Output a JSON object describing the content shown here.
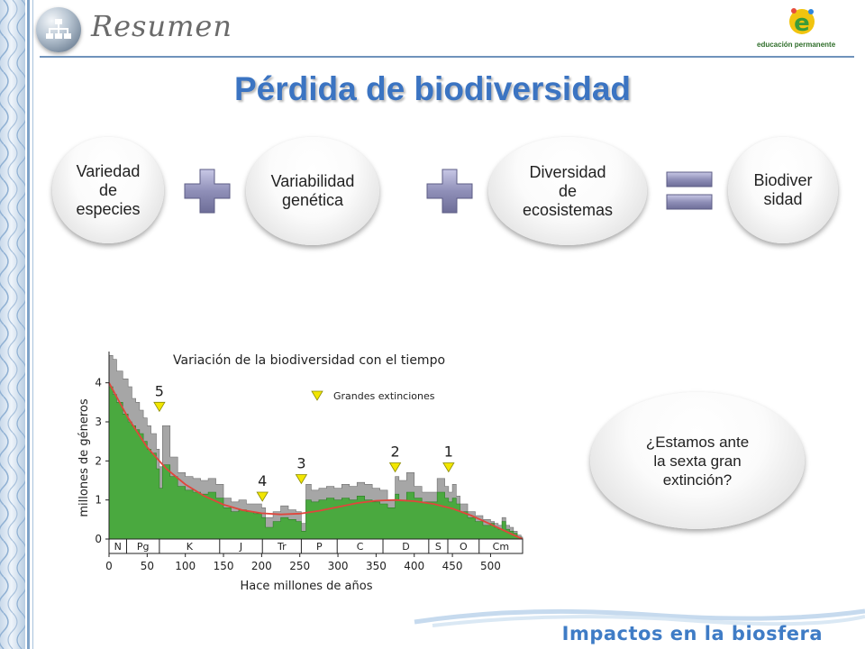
{
  "header": {
    "title": "Resumen",
    "brand_name": "educación permanente"
  },
  "slide": {
    "title": "Pérdida de biodiversidad"
  },
  "equation": {
    "terms": [
      "Variedad\nde\nespecies",
      "Variabilidad\ngenética",
      "Diversidad\nde\necosistemas"
    ],
    "result": "Biodiver\nsidad"
  },
  "question": "¿Estamos ante\nla sexta gran\nextinción?",
  "footer": {
    "title": "Impactos en la biosfera"
  },
  "colors": {
    "title_blue": "#3b74c2",
    "green": "#4aa93f",
    "gray": "#a6a6a6",
    "trend_red": "#e0463c",
    "marker_yellow": "#f2e600",
    "operator_purple": "#8f8fb8"
  },
  "chart_data": {
    "type": "area",
    "title": "Variación de la biodiversidad con el tiempo",
    "xlabel": "Hace millones de años",
    "ylabel": "millones de géneros",
    "xlim": [
      0,
      542
    ],
    "ylim": [
      0,
      4.8
    ],
    "x_ticks": [
      0,
      50,
      100,
      150,
      200,
      250,
      300,
      350,
      400,
      450,
      500
    ],
    "y_ticks": [
      0,
      1,
      2,
      3,
      4
    ],
    "legend": {
      "label": "Grandes extinciones",
      "position": "top-right"
    },
    "periods": [
      {
        "label": "N",
        "start": 0,
        "end": 23
      },
      {
        "label": "Pg",
        "start": 23,
        "end": 66
      },
      {
        "label": "K",
        "start": 66,
        "end": 145
      },
      {
        "label": "J",
        "start": 145,
        "end": 201
      },
      {
        "label": "Tr",
        "start": 201,
        "end": 252
      },
      {
        "label": "P",
        "start": 252,
        "end": 299
      },
      {
        "label": "C",
        "start": 299,
        "end": 359
      },
      {
        "label": "D",
        "start": 359,
        "end": 419
      },
      {
        "label": "S",
        "start": 419,
        "end": 444
      },
      {
        "label": "O",
        "start": 444,
        "end": 485
      },
      {
        "label": "Cm",
        "start": 485,
        "end": 542
      }
    ],
    "extinctions": [
      {
        "label": "5",
        "x": 66,
        "y": 3.5
      },
      {
        "label": "4",
        "x": 201,
        "y": 1.2
      },
      {
        "label": "3",
        "x": 252,
        "y": 1.65
      },
      {
        "label": "2",
        "x": 375,
        "y": 1.95
      },
      {
        "label": "1",
        "x": 445,
        "y": 1.95
      }
    ],
    "series": [
      {
        "name": "total",
        "x": [
          0,
          5,
          10,
          18,
          25,
          30,
          35,
          40,
          45,
          50,
          55,
          62,
          66,
          70,
          80,
          90,
          100,
          110,
          120,
          130,
          140,
          150,
          160,
          170,
          180,
          190,
          200,
          205,
          215,
          225,
          235,
          245,
          252,
          258,
          265,
          275,
          285,
          295,
          305,
          315,
          325,
          335,
          345,
          355,
          365,
          375,
          380,
          390,
          400,
          410,
          420,
          430,
          440,
          445,
          450,
          455,
          460,
          470,
          480,
          490,
          500,
          505,
          510,
          515,
          520,
          525,
          530,
          535,
          540,
          542
        ],
        "values": [
          4.7,
          4.6,
          4.3,
          4.1,
          3.9,
          3.6,
          3.5,
          3.3,
          3.1,
          2.9,
          2.7,
          2.3,
          1.85,
          2.9,
          2.1,
          1.7,
          1.6,
          1.55,
          1.5,
          1.55,
          1.4,
          1.05,
          0.95,
          1.0,
          0.9,
          0.9,
          0.8,
          0.55,
          0.7,
          0.85,
          0.75,
          0.7,
          0.4,
          1.4,
          1.25,
          1.3,
          1.35,
          1.3,
          1.4,
          1.35,
          1.45,
          1.4,
          1.3,
          1.25,
          1.0,
          1.6,
          1.5,
          1.7,
          1.35,
          1.2,
          1.2,
          1.55,
          1.35,
          1.2,
          1.4,
          1.1,
          0.9,
          0.7,
          0.6,
          0.5,
          0.45,
          0.4,
          0.35,
          0.55,
          0.35,
          0.3,
          0.2,
          0.1,
          0.05,
          0.0
        ]
      },
      {
        "name": "well-resolved",
        "x": [
          0,
          5,
          10,
          18,
          25,
          30,
          35,
          40,
          45,
          50,
          55,
          62,
          66,
          70,
          80,
          90,
          100,
          110,
          120,
          130,
          140,
          150,
          160,
          170,
          180,
          190,
          200,
          205,
          215,
          225,
          235,
          245,
          252,
          258,
          265,
          275,
          285,
          295,
          305,
          315,
          325,
          335,
          345,
          355,
          365,
          375,
          380,
          390,
          400,
          410,
          420,
          430,
          440,
          445,
          450,
          455,
          460,
          470,
          480,
          490,
          500,
          505,
          510,
          515,
          520,
          525,
          530,
          535,
          540,
          542
        ],
        "values": [
          3.9,
          3.7,
          3.5,
          3.2,
          3.0,
          2.9,
          2.8,
          2.7,
          2.5,
          2.3,
          2.2,
          1.8,
          1.3,
          1.9,
          1.6,
          1.35,
          1.25,
          1.2,
          1.15,
          1.2,
          1.05,
          0.8,
          0.7,
          0.75,
          0.7,
          0.65,
          0.55,
          0.3,
          0.45,
          0.55,
          0.5,
          0.45,
          0.2,
          1.0,
          0.95,
          1.0,
          1.05,
          1.0,
          1.05,
          1.0,
          1.1,
          1.0,
          0.95,
          0.9,
          0.8,
          1.15,
          1.0,
          1.2,
          1.05,
          0.95,
          0.95,
          1.2,
          1.05,
          0.95,
          1.05,
          0.9,
          0.7,
          0.55,
          0.45,
          0.35,
          0.4,
          0.3,
          0.25,
          0.45,
          0.25,
          0.2,
          0.15,
          0.05,
          0.02,
          0.0
        ]
      },
      {
        "name": "trend",
        "x": [
          0,
          25,
          50,
          75,
          100,
          125,
          150,
          175,
          200,
          225,
          250,
          275,
          300,
          325,
          350,
          375,
          400,
          425,
          450,
          475,
          500,
          525,
          542
        ],
        "values": [
          4.0,
          3.1,
          2.35,
          1.8,
          1.4,
          1.1,
          0.88,
          0.74,
          0.66,
          0.63,
          0.65,
          0.72,
          0.82,
          0.92,
          0.98,
          1.0,
          0.97,
          0.9,
          0.78,
          0.6,
          0.38,
          0.15,
          0.0
        ]
      }
    ]
  }
}
